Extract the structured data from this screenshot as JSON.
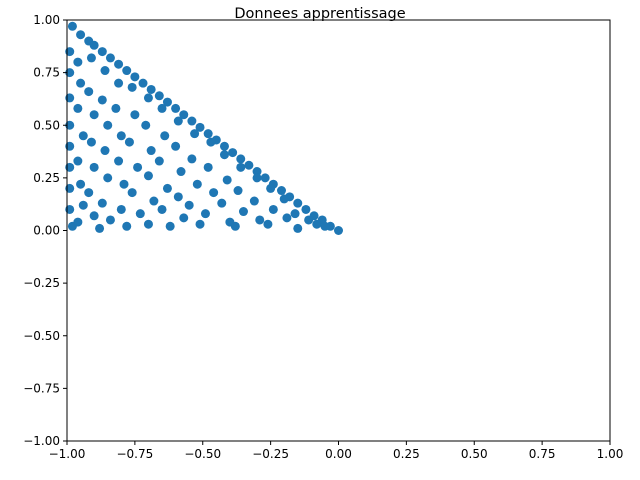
{
  "chart_data": {
    "type": "scatter",
    "title": "Donnees apprentissage",
    "xlabel": "",
    "ylabel": "",
    "xlim": [
      -1.0,
      1.0
    ],
    "ylim": [
      -1.0,
      1.0
    ],
    "x_ticks": [
      -1.0,
      -0.75,
      -0.5,
      -0.25,
      0.0,
      0.25,
      0.5,
      0.75,
      1.0
    ],
    "y_ticks": [
      -1.0,
      -0.75,
      -0.5,
      -0.25,
      0.0,
      0.25,
      0.5,
      0.75,
      1.0
    ],
    "x_tick_labels": [
      "−1.00",
      "−0.75",
      "−0.50",
      "−0.25",
      "0.00",
      "0.25",
      "0.50",
      "0.75",
      "1.00"
    ],
    "y_tick_labels": [
      "−1.00",
      "−0.75",
      "−0.50",
      "−0.25",
      "0.00",
      "0.25",
      "0.50",
      "0.75",
      "1.00"
    ],
    "grid": false,
    "legend": "none",
    "marker_color": "#1f77b4",
    "series": [
      {
        "points": [
          [
            -0.98,
            0.97
          ],
          [
            -0.95,
            0.93
          ],
          [
            -0.92,
            0.9
          ],
          [
            -0.9,
            0.88
          ],
          [
            -0.87,
            0.85
          ],
          [
            -0.84,
            0.82
          ],
          [
            -0.81,
            0.79
          ],
          [
            -0.78,
            0.76
          ],
          [
            -0.75,
            0.73
          ],
          [
            -0.72,
            0.7
          ],
          [
            -0.69,
            0.67
          ],
          [
            -0.66,
            0.64
          ],
          [
            -0.63,
            0.61
          ],
          [
            -0.6,
            0.58
          ],
          [
            -0.57,
            0.55
          ],
          [
            -0.54,
            0.52
          ],
          [
            -0.51,
            0.49
          ],
          [
            -0.48,
            0.46
          ],
          [
            -0.45,
            0.43
          ],
          [
            -0.42,
            0.4
          ],
          [
            -0.39,
            0.37
          ],
          [
            -0.36,
            0.34
          ],
          [
            -0.33,
            0.31
          ],
          [
            -0.3,
            0.28
          ],
          [
            -0.27,
            0.25
          ],
          [
            -0.24,
            0.22
          ],
          [
            -0.21,
            0.19
          ],
          [
            -0.18,
            0.16
          ],
          [
            -0.15,
            0.13
          ],
          [
            -0.12,
            0.1
          ],
          [
            -0.09,
            0.07
          ],
          [
            -0.06,
            0.05
          ],
          [
            -0.03,
            0.02
          ],
          [
            0.0,
            0.0
          ],
          [
            -0.99,
            0.85
          ],
          [
            -0.99,
            0.75
          ],
          [
            -0.99,
            0.63
          ],
          [
            -0.99,
            0.5
          ],
          [
            -0.99,
            0.4
          ],
          [
            -0.99,
            0.3
          ],
          [
            -0.99,
            0.2
          ],
          [
            -0.99,
            0.1
          ],
          [
            -0.98,
            0.02
          ],
          [
            -0.96,
            0.8
          ],
          [
            -0.95,
            0.7
          ],
          [
            -0.96,
            0.58
          ],
          [
            -0.94,
            0.45
          ],
          [
            -0.96,
            0.33
          ],
          [
            -0.95,
            0.22
          ],
          [
            -0.94,
            0.12
          ],
          [
            -0.96,
            0.04
          ],
          [
            -0.91,
            0.82
          ],
          [
            -0.92,
            0.66
          ],
          [
            -0.9,
            0.55
          ],
          [
            -0.91,
            0.42
          ],
          [
            -0.9,
            0.3
          ],
          [
            -0.92,
            0.18
          ],
          [
            -0.9,
            0.07
          ],
          [
            -0.88,
            0.01
          ],
          [
            -0.86,
            0.76
          ],
          [
            -0.87,
            0.62
          ],
          [
            -0.85,
            0.5
          ],
          [
            -0.86,
            0.38
          ],
          [
            -0.85,
            0.25
          ],
          [
            -0.87,
            0.13
          ],
          [
            -0.84,
            0.05
          ],
          [
            -0.81,
            0.7
          ],
          [
            -0.82,
            0.58
          ],
          [
            -0.8,
            0.45
          ],
          [
            -0.81,
            0.33
          ],
          [
            -0.79,
            0.22
          ],
          [
            -0.8,
            0.1
          ],
          [
            -0.78,
            0.02
          ],
          [
            -0.76,
            0.68
          ],
          [
            -0.75,
            0.55
          ],
          [
            -0.77,
            0.42
          ],
          [
            -0.74,
            0.3
          ],
          [
            -0.76,
            0.18
          ],
          [
            -0.73,
            0.08
          ],
          [
            -0.7,
            0.63
          ],
          [
            -0.71,
            0.5
          ],
          [
            -0.69,
            0.38
          ],
          [
            -0.7,
            0.26
          ],
          [
            -0.68,
            0.14
          ],
          [
            -0.7,
            0.03
          ],
          [
            -0.65,
            0.58
          ],
          [
            -0.64,
            0.45
          ],
          [
            -0.66,
            0.33
          ],
          [
            -0.63,
            0.2
          ],
          [
            -0.65,
            0.1
          ],
          [
            -0.62,
            0.02
          ],
          [
            -0.59,
            0.52
          ],
          [
            -0.6,
            0.4
          ],
          [
            -0.58,
            0.28
          ],
          [
            -0.59,
            0.16
          ],
          [
            -0.57,
            0.06
          ],
          [
            -0.53,
            0.46
          ],
          [
            -0.54,
            0.34
          ],
          [
            -0.52,
            0.22
          ],
          [
            -0.55,
            0.12
          ],
          [
            -0.51,
            0.03
          ],
          [
            -0.47,
            0.42
          ],
          [
            -0.48,
            0.3
          ],
          [
            -0.46,
            0.18
          ],
          [
            -0.49,
            0.08
          ],
          [
            -0.42,
            0.36
          ],
          [
            -0.41,
            0.24
          ],
          [
            -0.43,
            0.13
          ],
          [
            -0.4,
            0.04
          ],
          [
            -0.36,
            0.3
          ],
          [
            -0.37,
            0.19
          ],
          [
            -0.35,
            0.09
          ],
          [
            -0.38,
            0.02
          ],
          [
            -0.3,
            0.25
          ],
          [
            -0.31,
            0.14
          ],
          [
            -0.29,
            0.05
          ],
          [
            -0.25,
            0.2
          ],
          [
            -0.24,
            0.1
          ],
          [
            -0.26,
            0.03
          ],
          [
            -0.2,
            0.15
          ],
          [
            -0.19,
            0.06
          ],
          [
            -0.16,
            0.08
          ],
          [
            -0.15,
            0.01
          ],
          [
            -0.11,
            0.05
          ],
          [
            -0.08,
            0.03
          ],
          [
            -0.05,
            0.02
          ]
        ]
      }
    ]
  }
}
